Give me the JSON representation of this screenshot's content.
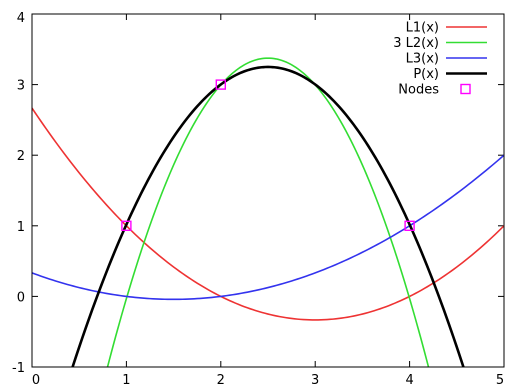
{
  "chart_data": {
    "type": "line",
    "title": "",
    "xlabel": "",
    "ylabel": "",
    "xlim": [
      0,
      5
    ],
    "ylim": [
      -1,
      4
    ],
    "x_ticks": [
      "0",
      "1",
      "2",
      "3",
      "4",
      "5"
    ],
    "y_ticks": [
      "-1",
      "0",
      "1",
      "2",
      "3",
      "4"
    ],
    "grid": false,
    "legend_position": "top-right",
    "series": [
      {
        "name": "L1(x)",
        "color": "#ee3333",
        "x": [
          0,
          0.5,
          1,
          1.5,
          2,
          2.5,
          3,
          3.5,
          4,
          4.5,
          5
        ],
        "y": [
          2.667,
          1.667,
          1.0,
          0.333,
          0.0,
          -0.25,
          -0.333,
          -0.25,
          0.0,
          0.417,
          1.0
        ]
      },
      {
        "name": "3 L2(x)",
        "color": "#33dd33",
        "x": [
          0.8,
          1,
          1.5,
          2,
          2.5,
          3,
          3.5,
          4,
          4.2
        ],
        "y": [
          -1.0,
          0.0,
          1.875,
          3.0,
          3.375,
          3.0,
          1.875,
          0.0,
          -1.0
        ]
      },
      {
        "name": "L3(x)",
        "color": "#3333ee",
        "x": [
          0,
          0.5,
          1,
          1.5,
          2,
          2.5,
          3,
          3.5,
          4,
          4.5,
          5
        ],
        "y": [
          0.333,
          0.125,
          0.0,
          -0.042,
          0.0,
          0.125,
          0.333,
          0.625,
          1.0,
          1.458,
          2.0
        ]
      },
      {
        "name": "P(x)",
        "color": "#000000",
        "x": [
          0.43,
          1,
          1.5,
          2,
          2.5,
          3,
          3.5,
          4,
          4.57
        ],
        "y": [
          -1.0,
          1.0,
          2.375,
          3.0,
          3.25,
          3.0,
          2.375,
          1.0,
          -1.0
        ]
      },
      {
        "name": "Nodes",
        "color": "#ff00ff",
        "marker": "open-square",
        "x": [
          1,
          2,
          4
        ],
        "y": [
          1,
          3,
          1
        ]
      }
    ]
  }
}
